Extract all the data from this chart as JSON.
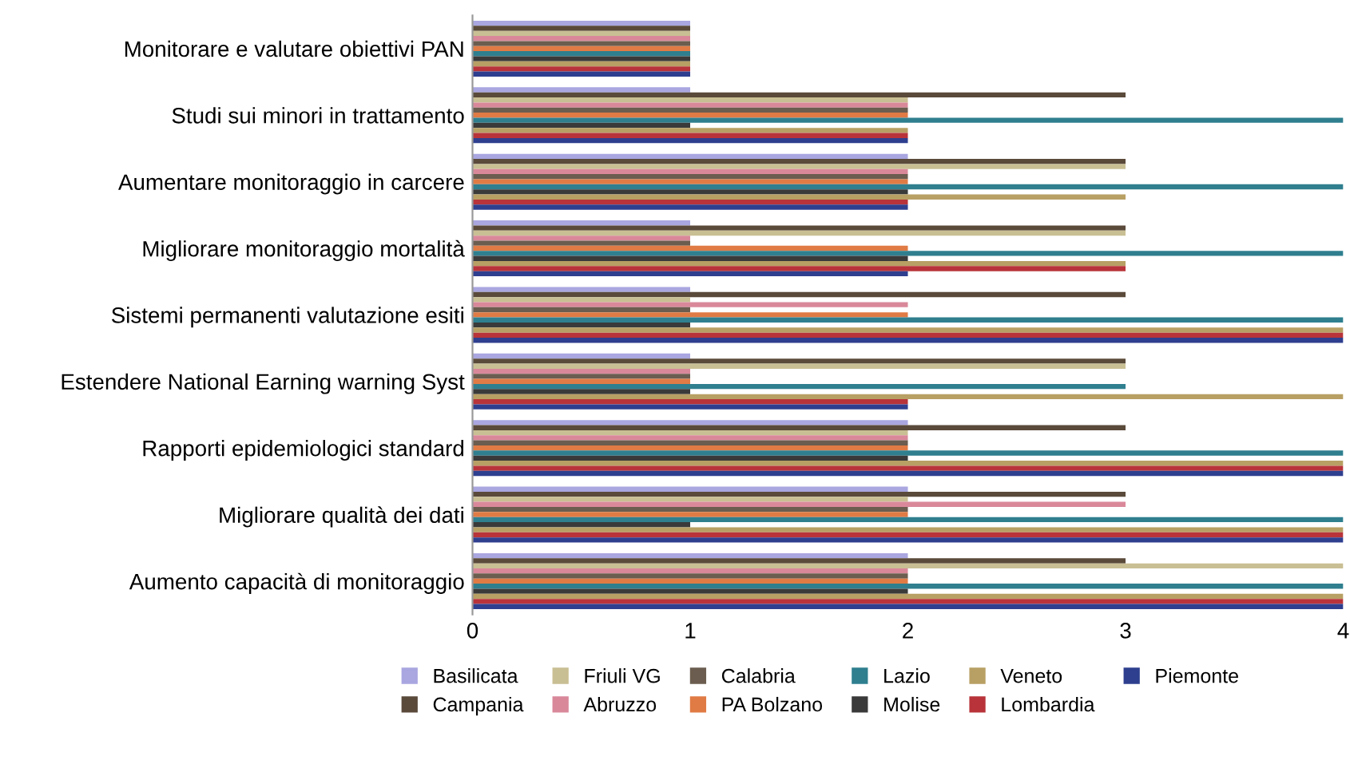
{
  "chart_data": {
    "type": "bar",
    "orientation": "horizontal",
    "categories": [
      "Monitorare e valutare obiettivi PAN",
      "Studi sui minori in trattamento",
      "Aumentare monitoraggio in carcere",
      "Migliorare monitoraggio mortalità",
      "Sistemi permanenti valutazione esiti",
      "Estendere National Earning warning Syst",
      "Rapporti epidemiologici standard",
      "Migliorare qualità dei dati",
      "Aumento capacità di monitoraggio"
    ],
    "series": [
      {
        "name": "Basilicata",
        "color": "#a9a6e0",
        "values": [
          1,
          1,
          2,
          1,
          1,
          1,
          2,
          2,
          2
        ]
      },
      {
        "name": "Campania",
        "color": "#5a4a3a",
        "values": [
          1,
          3,
          3,
          3,
          3,
          3,
          3,
          3,
          3
        ]
      },
      {
        "name": "Friuli VG",
        "color": "#c9bf94",
        "values": [
          1,
          2,
          3,
          3,
          1,
          3,
          2,
          2,
          4
        ]
      },
      {
        "name": "Abruzzo",
        "color": "#d9889a",
        "values": [
          1,
          2,
          2,
          1,
          2,
          1,
          2,
          3,
          2
        ]
      },
      {
        "name": "Calabria",
        "color": "#6b5d4f",
        "values": [
          1,
          2,
          2,
          1,
          1,
          1,
          2,
          2,
          2
        ]
      },
      {
        "name": "PA Bolzano",
        "color": "#e07b45",
        "values": [
          1,
          2,
          2,
          2,
          2,
          1,
          2,
          2,
          2
        ]
      },
      {
        "name": "Lazio",
        "color": "#2f7f8f",
        "values": [
          1,
          4,
          4,
          4,
          4,
          3,
          4,
          4,
          4
        ]
      },
      {
        "name": "Molise",
        "color": "#3a3a3a",
        "values": [
          1,
          1,
          2,
          2,
          1,
          1,
          2,
          1,
          2
        ]
      },
      {
        "name": "Veneto",
        "color": "#b8a064",
        "values": [
          1,
          2,
          3,
          3,
          4,
          4,
          4,
          4,
          4
        ]
      },
      {
        "name": "Lombardia",
        "color": "#b8343a",
        "values": [
          1,
          2,
          2,
          3,
          4,
          2,
          4,
          4,
          4
        ]
      },
      {
        "name": "Piemonte",
        "color": "#2e3f8f",
        "values": [
          1,
          2,
          2,
          2,
          4,
          2,
          4,
          4,
          4
        ]
      }
    ],
    "xlim": [
      0,
      4
    ],
    "xticks": [
      0,
      1,
      2,
      3,
      4
    ],
    "grid": false,
    "legend": "bottom"
  }
}
